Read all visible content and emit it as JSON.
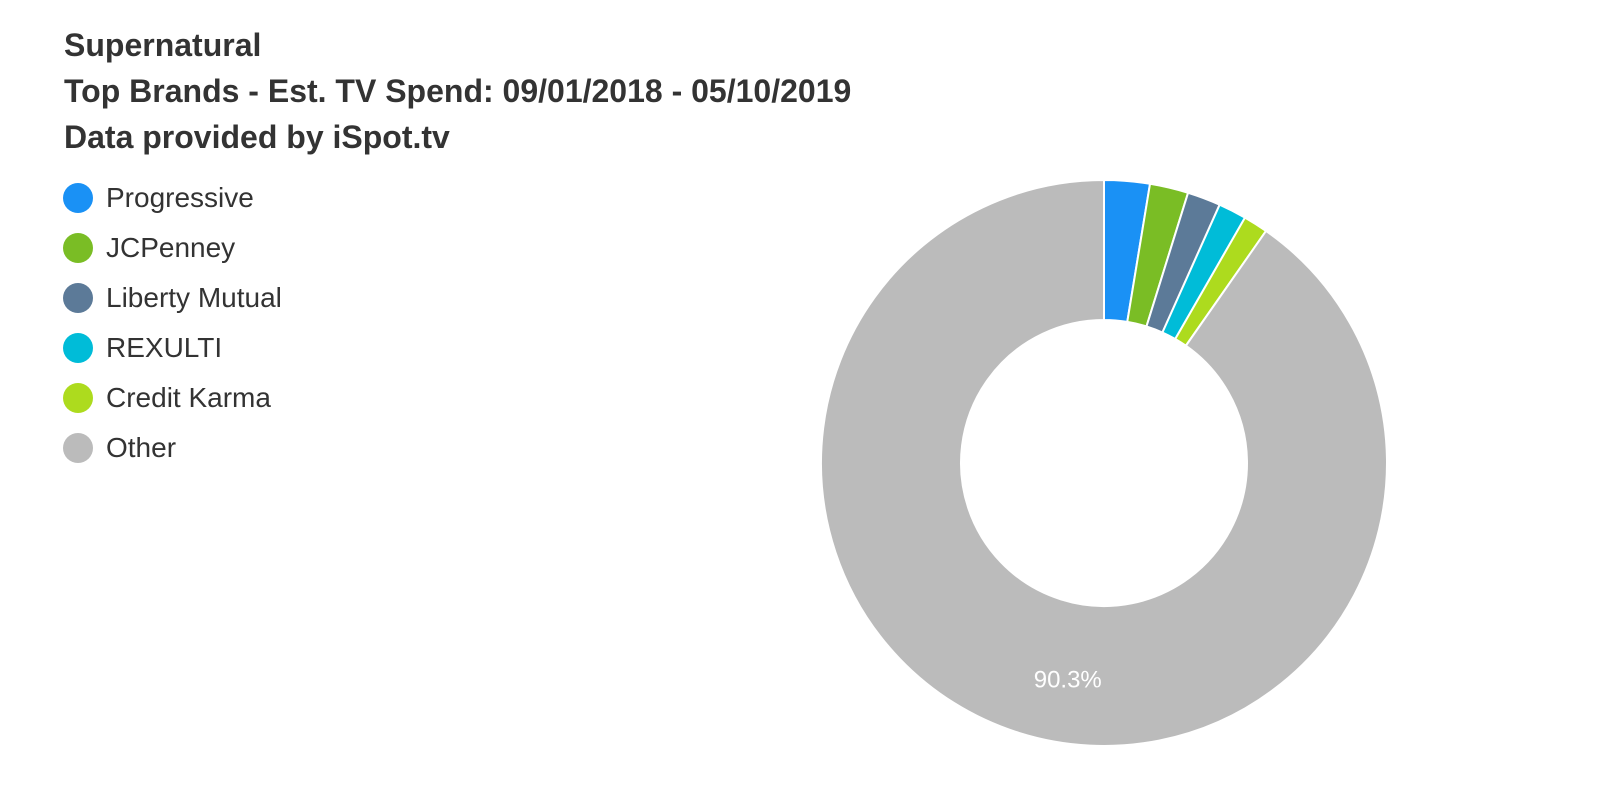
{
  "chart_data": {
    "type": "pie",
    "style": "donut",
    "title_lines": [
      "Supernatural",
      "Top Brands - Est. TV Spend: 09/01/2018 - 05/10/2019",
      "Data provided by iSpot.tv"
    ],
    "legend_placement": "top-left",
    "slices": [
      {
        "name": "Progressive",
        "value": 2.6,
        "color": "#1a91f5"
      },
      {
        "name": "JCPenney",
        "value": 2.2,
        "color": "#7abd25"
      },
      {
        "name": "Liberty Mutual",
        "value": 1.9,
        "color": "#5c7a98"
      },
      {
        "name": "REXULTI",
        "value": 1.6,
        "color": "#00bcd8"
      },
      {
        "name": "Credit Karma",
        "value": 1.4,
        "color": "#addb1e"
      },
      {
        "name": "Other",
        "value": 90.3,
        "color": "#bbbbbb"
      }
    ],
    "data_labels": [
      {
        "slice": "Other",
        "text": "90.3%"
      }
    ]
  }
}
